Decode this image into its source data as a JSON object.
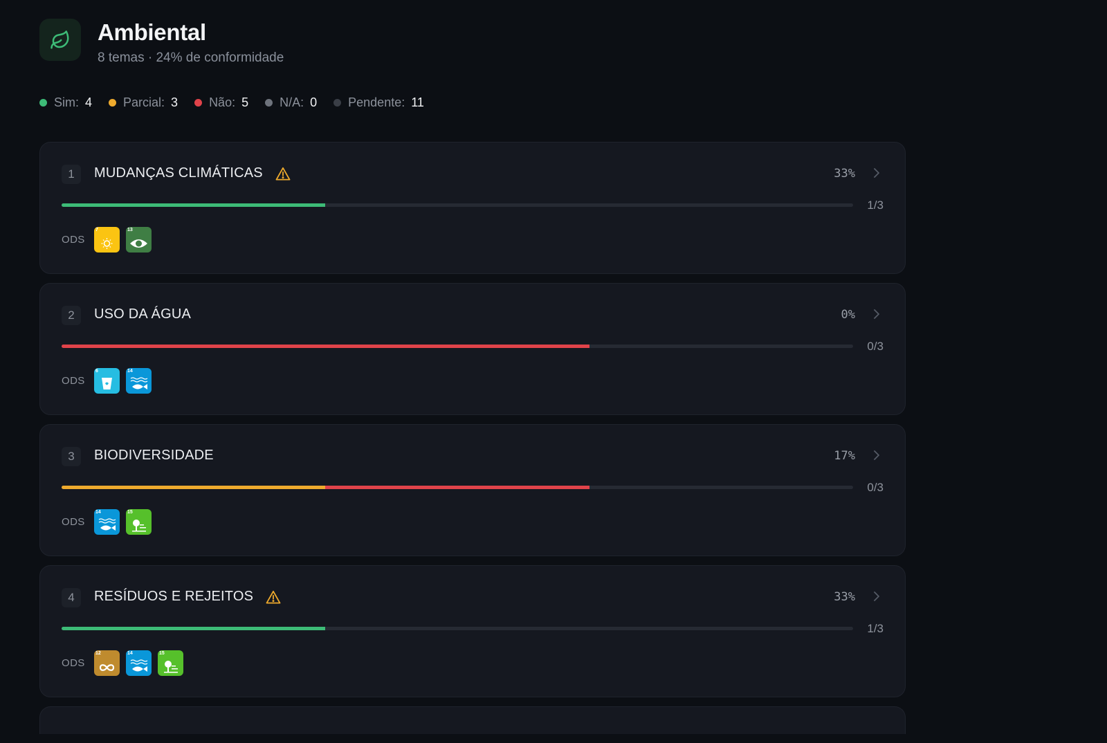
{
  "header": {
    "title": "Ambiental",
    "subtitle": "8 temas · 24% de conformidade",
    "icon": "leaf-icon"
  },
  "legend": [
    {
      "label": "Sim:",
      "count": "4",
      "color": "#3dbb77"
    },
    {
      "label": "Parcial:",
      "count": "3",
      "color": "#eeaa2d"
    },
    {
      "label": "Não:",
      "count": "5",
      "color": "#e0434a"
    },
    {
      "label": "N/A:",
      "count": "0",
      "color": "#6e737c"
    },
    {
      "label": "Pendente:",
      "count": "11",
      "color": "#3a3e46"
    }
  ],
  "status_colors": {
    "sim": "#3dbb77",
    "parcial": "#eeaa2d",
    "nao": "#e0434a"
  },
  "ods_label": "ODS",
  "themes": [
    {
      "number": "1",
      "title": "MUDANÇAS CLIMÁTICAS",
      "warning": true,
      "percent": "33%",
      "ratio": "1/3",
      "progress": {
        "total": 3,
        "sim": 1,
        "parcial": 0,
        "nao": 0
      },
      "ods": [
        {
          "number": "7",
          "color": "#fbc412",
          "icon": "sun-icon"
        },
        {
          "number": "13",
          "color": "#3f7e44",
          "icon": "eye-earth-icon"
        }
      ]
    },
    {
      "number": "2",
      "title": "USO DA ÁGUA",
      "warning": false,
      "percent": "0%",
      "ratio": "0/3",
      "progress": {
        "total": 3,
        "sim": 0,
        "parcial": 0,
        "nao": 2
      },
      "ods": [
        {
          "number": "6",
          "color": "#26bde2",
          "icon": "water-glass-icon"
        },
        {
          "number": "14",
          "color": "#0a97d9",
          "icon": "fish-icon"
        }
      ]
    },
    {
      "number": "3",
      "title": "BIODIVERSIDADE",
      "warning": false,
      "percent": "17%",
      "ratio": "0/3",
      "progress": {
        "total": 3,
        "sim": 0,
        "parcial": 1,
        "nao": 1
      },
      "ods": [
        {
          "number": "14",
          "color": "#0a97d9",
          "icon": "fish-icon"
        },
        {
          "number": "15",
          "color": "#56c02b",
          "icon": "tree-icon"
        }
      ]
    },
    {
      "number": "4",
      "title": "RESÍDUOS E REJEITOS",
      "warning": true,
      "percent": "33%",
      "ratio": "1/3",
      "progress": {
        "total": 3,
        "sim": 1,
        "parcial": 0,
        "nao": 0
      },
      "ods": [
        {
          "number": "12",
          "color": "#bf8b2e",
          "icon": "infinity-icon"
        },
        {
          "number": "14",
          "color": "#0a97d9",
          "icon": "fish-icon"
        },
        {
          "number": "15",
          "color": "#56c02b",
          "icon": "tree-icon"
        }
      ]
    }
  ]
}
